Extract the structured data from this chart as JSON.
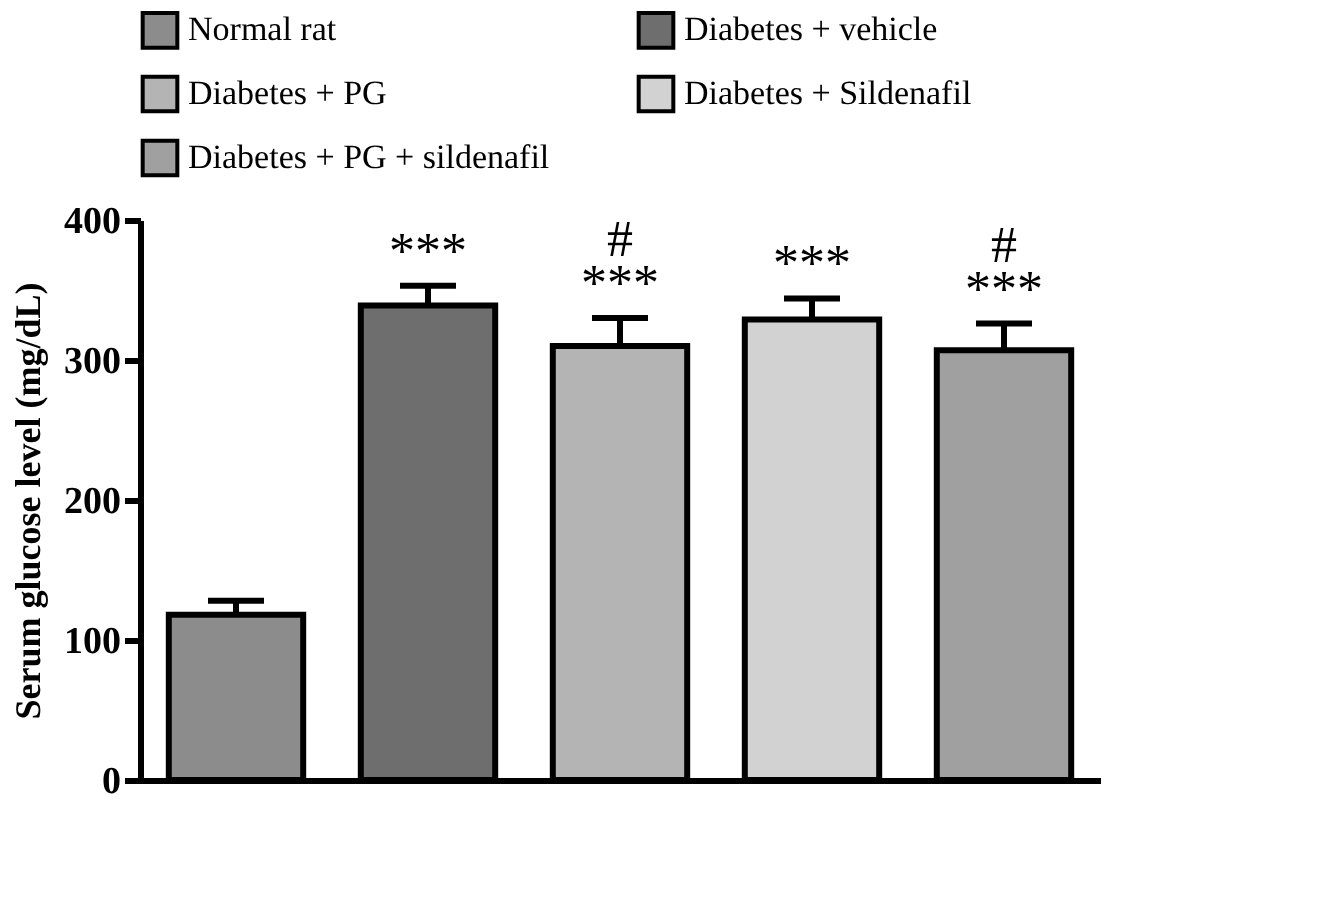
{
  "chart_data": {
    "type": "bar",
    "ylabel": "Serum glucose level (mg/dL)",
    "categories": [
      null,
      null,
      null,
      null,
      null
    ],
    "ylim": [
      0,
      400
    ],
    "yticks": [
      0,
      100,
      200,
      300,
      400
    ],
    "grid": false,
    "legend": "top",
    "tick_labels": "y",
    "series": [
      {
        "name": "Normal rat",
        "color": "#8c8c8c",
        "values": [
          118,
          null,
          null,
          null,
          null
        ],
        "errors": [
          10,
          null,
          null,
          null,
          null
        ],
        "value_labels": [
          null,
          null,
          null,
          null,
          null
        ]
      },
      {
        "name": "Diabetes + vehicle",
        "color": "#6e6e6e",
        "values": [
          null,
          339,
          null,
          null,
          null
        ],
        "errors": [
          null,
          14,
          null,
          null,
          null
        ],
        "value_labels": [
          null,
          "***",
          null,
          null,
          null
        ]
      },
      {
        "name": "Diabetes + PG",
        "color": "#b4b4b4",
        "values": [
          null,
          null,
          310,
          null,
          null
        ],
        "errors": [
          null,
          null,
          20,
          null,
          null
        ],
        "value_labels": [
          null,
          null,
          "#\n***",
          null,
          null
        ]
      },
      {
        "name": "Diabetes + Sildenafil",
        "color": "#d2d2d2",
        "values": [
          null,
          null,
          null,
          329,
          null
        ],
        "errors": [
          null,
          null,
          null,
          15,
          null
        ],
        "value_labels": [
          null,
          null,
          null,
          "***",
          null
        ]
      },
      {
        "name": "Diabetes + PG + sildenafil",
        "color": "#a0a0a0",
        "values": [
          null,
          null,
          null,
          null,
          307
        ],
        "errors": [
          null,
          null,
          null,
          null,
          19
        ],
        "value_labels": [
          null,
          null,
          null,
          null,
          "#\n***"
        ]
      }
    ]
  }
}
